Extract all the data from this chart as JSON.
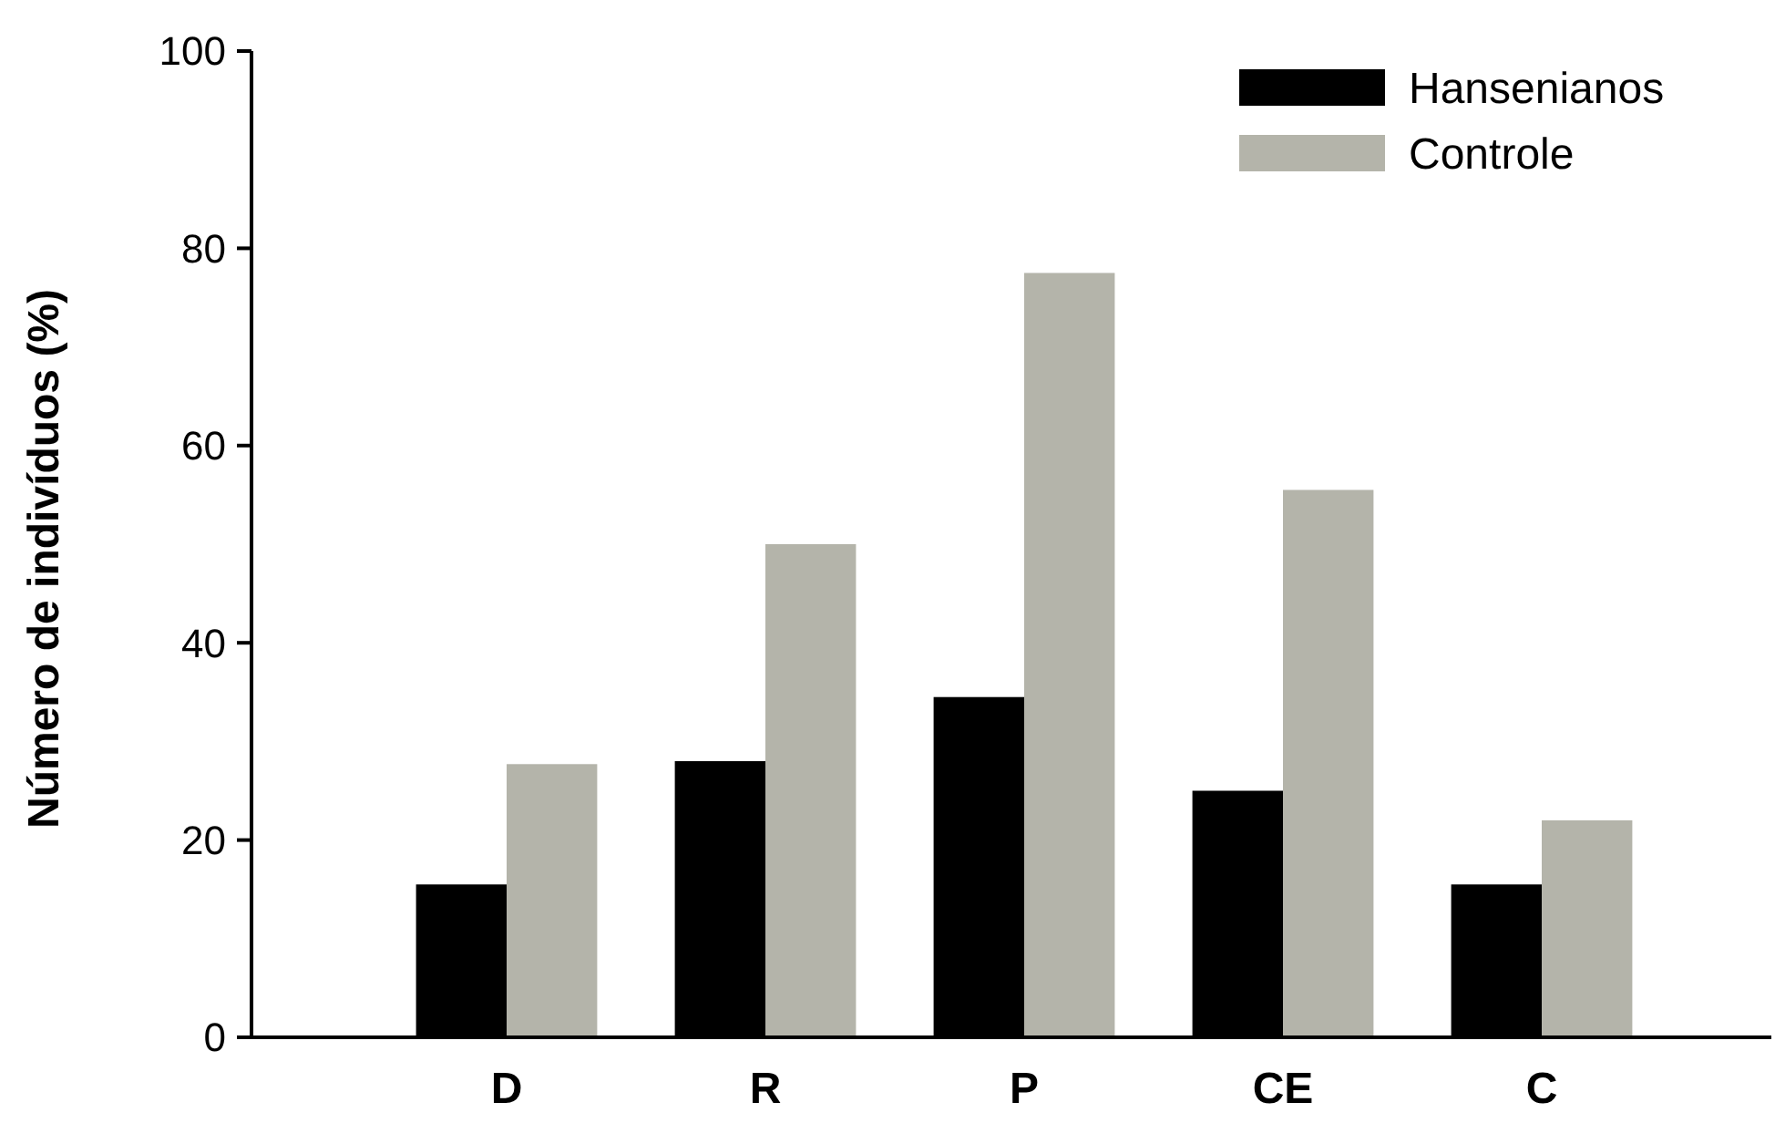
{
  "chart_data": {
    "type": "bar",
    "ylabel": "Número de indivíduos (%)",
    "categories": [
      "D",
      "R",
      "P",
      "CE",
      "C"
    ],
    "series": [
      {
        "name": "Hansenianos",
        "color": "#000000",
        "values": [
          15.5,
          28,
          34.5,
          25,
          15.5
        ]
      },
      {
        "name": "Controle",
        "color": "#b4b4aa",
        "values": [
          27.7,
          50,
          77.5,
          55.5,
          22
        ]
      }
    ],
    "ylim": [
      0,
      100
    ],
    "yticks": [
      0,
      20,
      40,
      60,
      80,
      100
    ],
    "legend": "top right",
    "grid": false
  }
}
